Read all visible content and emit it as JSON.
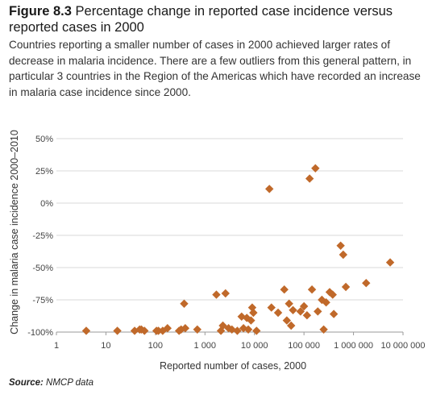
{
  "figure": {
    "number": "Figure 8.3",
    "title": "Percentage change in reported case incidence versus reported cases in 2000",
    "subtitle": "Countries reporting a smaller number of cases in 2000 achieved larger rates of decrease in malaria incidence. There are a few outliers from this general pattern, in particular 3 countries in the Region of the Americas which have recorded an increase in malaria case incidence since 2000.",
    "source_label": "Source:",
    "source_text": "NMCP data"
  },
  "colors": {
    "marker": "#c0692a",
    "grid": "#d9d9d9",
    "axis": "#9a9a9a"
  },
  "chart_data": {
    "type": "scatter",
    "xlabel": "Reported number of cases, 2000",
    "ylabel": "Change in malaria case incidence 2000–2010",
    "x_scale": "log",
    "xlim": [
      1,
      10000000
    ],
    "ylim": [
      -100,
      50
    ],
    "grid": "horizontal",
    "xticks": [
      {
        "value": 1,
        "label": "1"
      },
      {
        "value": 10,
        "label": "10"
      },
      {
        "value": 100,
        "label": "100"
      },
      {
        "value": 1000,
        "label": "1 000"
      },
      {
        "value": 10000,
        "label": "10 000"
      },
      {
        "value": 100000,
        "label": "100 000"
      },
      {
        "value": 1000000,
        "label": "1 000 000"
      },
      {
        "value": 10000000,
        "label": "10 000 000"
      }
    ],
    "yticks": [
      {
        "value": 50,
        "label": "50%"
      },
      {
        "value": 25,
        "label": "25%"
      },
      {
        "value": 0,
        "label": "0%"
      },
      {
        "value": -25,
        "label": "-25%"
      },
      {
        "value": -50,
        "label": "-50%"
      },
      {
        "value": -75,
        "label": "-75%"
      },
      {
        "value": -100,
        "label": "-100%"
      }
    ],
    "points": [
      {
        "x": 4,
        "y": -99
      },
      {
        "x": 17,
        "y": -99
      },
      {
        "x": 38,
        "y": -99
      },
      {
        "x": 48,
        "y": -98
      },
      {
        "x": 52,
        "y": -98
      },
      {
        "x": 60,
        "y": -99
      },
      {
        "x": 105,
        "y": -99
      },
      {
        "x": 115,
        "y": -99
      },
      {
        "x": 140,
        "y": -99
      },
      {
        "x": 175,
        "y": -97
      },
      {
        "x": 300,
        "y": -99
      },
      {
        "x": 330,
        "y": -98
      },
      {
        "x": 380,
        "y": -78
      },
      {
        "x": 400,
        "y": -97
      },
      {
        "x": 700,
        "y": -98
      },
      {
        "x": 1700,
        "y": -71
      },
      {
        "x": 2100,
        "y": -99
      },
      {
        "x": 2300,
        "y": -95
      },
      {
        "x": 2600,
        "y": -70
      },
      {
        "x": 3000,
        "y": -97
      },
      {
        "x": 3500,
        "y": -98
      },
      {
        "x": 4500,
        "y": -99
      },
      {
        "x": 5500,
        "y": -88
      },
      {
        "x": 6000,
        "y": -97
      },
      {
        "x": 7000,
        "y": -89
      },
      {
        "x": 7500,
        "y": -98
      },
      {
        "x": 8500,
        "y": -91
      },
      {
        "x": 9000,
        "y": -81
      },
      {
        "x": 9500,
        "y": -85
      },
      {
        "x": 11000,
        "y": -99
      },
      {
        "x": 20000,
        "y": 11
      },
      {
        "x": 22000,
        "y": -81
      },
      {
        "x": 30000,
        "y": -85
      },
      {
        "x": 40000,
        "y": -67
      },
      {
        "x": 45000,
        "y": -91
      },
      {
        "x": 50000,
        "y": -78
      },
      {
        "x": 55000,
        "y": -95
      },
      {
        "x": 60000,
        "y": -83
      },
      {
        "x": 85000,
        "y": -84
      },
      {
        "x": 100000,
        "y": -80
      },
      {
        "x": 115000,
        "y": -87
      },
      {
        "x": 130000,
        "y": 19
      },
      {
        "x": 145000,
        "y": -67
      },
      {
        "x": 170000,
        "y": 27
      },
      {
        "x": 190000,
        "y": -84
      },
      {
        "x": 230000,
        "y": -75
      },
      {
        "x": 250000,
        "y": -98
      },
      {
        "x": 280000,
        "y": -77
      },
      {
        "x": 330000,
        "y": -69
      },
      {
        "x": 380000,
        "y": -71
      },
      {
        "x": 400000,
        "y": -86
      },
      {
        "x": 550000,
        "y": -33
      },
      {
        "x": 620000,
        "y": -40
      },
      {
        "x": 700000,
        "y": -65
      },
      {
        "x": 1800000,
        "y": -62
      },
      {
        "x": 5500000,
        "y": -46
      }
    ]
  }
}
